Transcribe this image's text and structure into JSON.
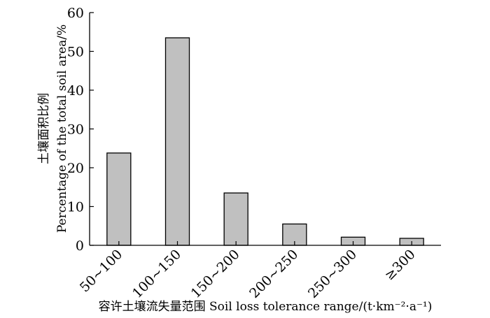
{
  "chart_data": {
    "type": "bar",
    "title": "",
    "categories": [
      "50~100",
      "100~150",
      "150~200",
      "200~250",
      "250~300",
      "≥300"
    ],
    "values": [
      23.8,
      53.5,
      13.5,
      5.5,
      2.1,
      1.8
    ],
    "ylim": [
      0,
      60
    ],
    "yticks": [
      "0",
      "10",
      "20",
      "30",
      "40",
      "50",
      "60"
    ],
    "ylabel_cn": "土壤面积比例",
    "ylabel_en": "Percentage of the total soil area/%",
    "xlabel": "容许土壤流失量范围 Soil loss tolerance range/(t·km⁻²·a⁻¹)",
    "bar_color": "#c0c0c0",
    "grid": false,
    "legend": "none"
  }
}
